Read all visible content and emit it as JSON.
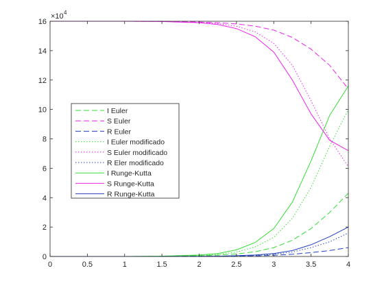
{
  "chart_data": {
    "type": "line",
    "title": "",
    "xlabel": "",
    "ylabel": "",
    "y_exponent_label": "×10⁴",
    "y_exponent_base": "×10",
    "y_exponent_power": "4",
    "xlim": [
      0,
      4
    ],
    "ylim": [
      0,
      16
    ],
    "x_ticks": [
      "0",
      "0.5",
      "1",
      "1.5",
      "2",
      "2.5",
      "3",
      "3.5",
      "4"
    ],
    "y_ticks": [
      "0",
      "2",
      "4",
      "6",
      "8",
      "10",
      "12",
      "14",
      "16"
    ],
    "grid": false,
    "legend_position": "left-center",
    "x": [
      0,
      0.5,
      1,
      1.5,
      2,
      2.25,
      2.5,
      2.75,
      3,
      3.25,
      3.5,
      3.75,
      4
    ],
    "series": [
      {
        "name": "I Euler",
        "color": "#33dd33",
        "dash": "dashed",
        "values": [
          0,
          0,
          0,
          0.01,
          0.05,
          0.09,
          0.17,
          0.32,
          0.6,
          1.1,
          1.9,
          3.0,
          4.3
        ]
      },
      {
        "name": "S Euler",
        "color": "#ee22ee",
        "dash": "dashed",
        "values": [
          16,
          16,
          16,
          15.99,
          15.95,
          15.9,
          15.82,
          15.67,
          15.4,
          14.9,
          14.1,
          13.0,
          11.4
        ]
      },
      {
        "name": "R Euler",
        "color": "#1f3fbf",
        "dash": "dashed",
        "values": [
          0,
          0,
          0,
          0,
          0,
          0.01,
          0.02,
          0.04,
          0.08,
          0.15,
          0.26,
          0.4,
          0.6
        ]
      },
      {
        "name": "I Euler modificado",
        "color": "#33dd33",
        "dash": "dotted",
        "values": [
          0,
          0,
          0,
          0.01,
          0.07,
          0.14,
          0.3,
          0.65,
          1.3,
          2.6,
          4.7,
          7.5,
          10.0
        ]
      },
      {
        "name": "S Euler modificado",
        "color": "#ee22ee",
        "dash": "dotted",
        "values": [
          16,
          16,
          16,
          15.99,
          15.92,
          15.84,
          15.66,
          15.28,
          14.5,
          13.0,
          10.6,
          8.0,
          6.1
        ]
      },
      {
        "name": "R Eler modificado",
        "color": "#1f3fbf",
        "dash": "dotted",
        "values": [
          0,
          0,
          0,
          0,
          0.01,
          0.02,
          0.04,
          0.07,
          0.15,
          0.3,
          0.6,
          1.0,
          1.6
        ]
      },
      {
        "name": "I Runge-Kutta",
        "color": "#33dd33",
        "dash": "solid",
        "values": [
          0,
          0,
          0,
          0.02,
          0.1,
          0.2,
          0.45,
          0.95,
          1.9,
          3.7,
          6.5,
          9.6,
          11.6
        ]
      },
      {
        "name": "S Runge-Kutta",
        "color": "#ee22ee",
        "dash": "solid",
        "values": [
          16,
          16,
          16,
          15.98,
          15.9,
          15.78,
          15.5,
          14.95,
          13.9,
          12.0,
          9.7,
          7.9,
          7.2
        ]
      },
      {
        "name": "R Runge-Kutta",
        "color": "#1f3fbf",
        "dash": "solid",
        "values": [
          0,
          0,
          0,
          0,
          0.01,
          0.02,
          0.05,
          0.1,
          0.2,
          0.4,
          0.8,
          1.35,
          2.0
        ]
      }
    ]
  }
}
